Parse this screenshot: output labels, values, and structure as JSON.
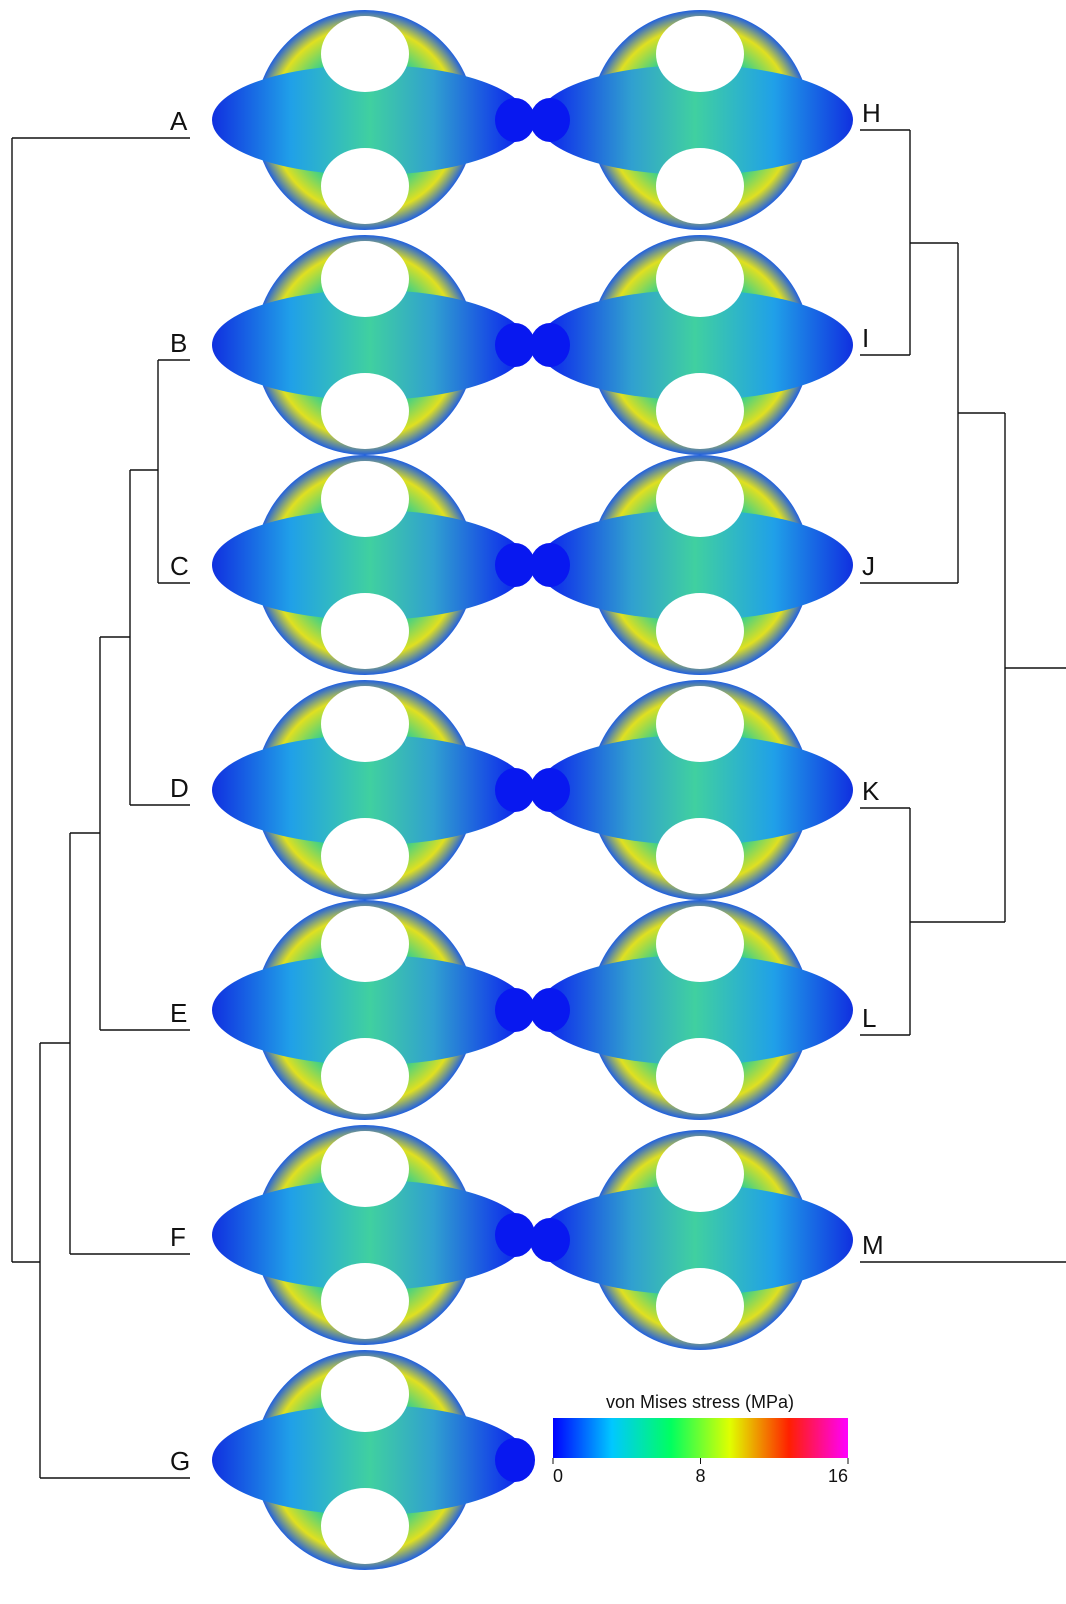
{
  "left_labels": [
    "A",
    "B",
    "C",
    "D",
    "E",
    "F",
    "G"
  ],
  "right_labels": [
    "H",
    "I",
    "J",
    "K",
    "L",
    "M"
  ],
  "colorbar": {
    "title": "von Mises stress (MPa)",
    "ticks": [
      0,
      8,
      16
    ]
  }
}
